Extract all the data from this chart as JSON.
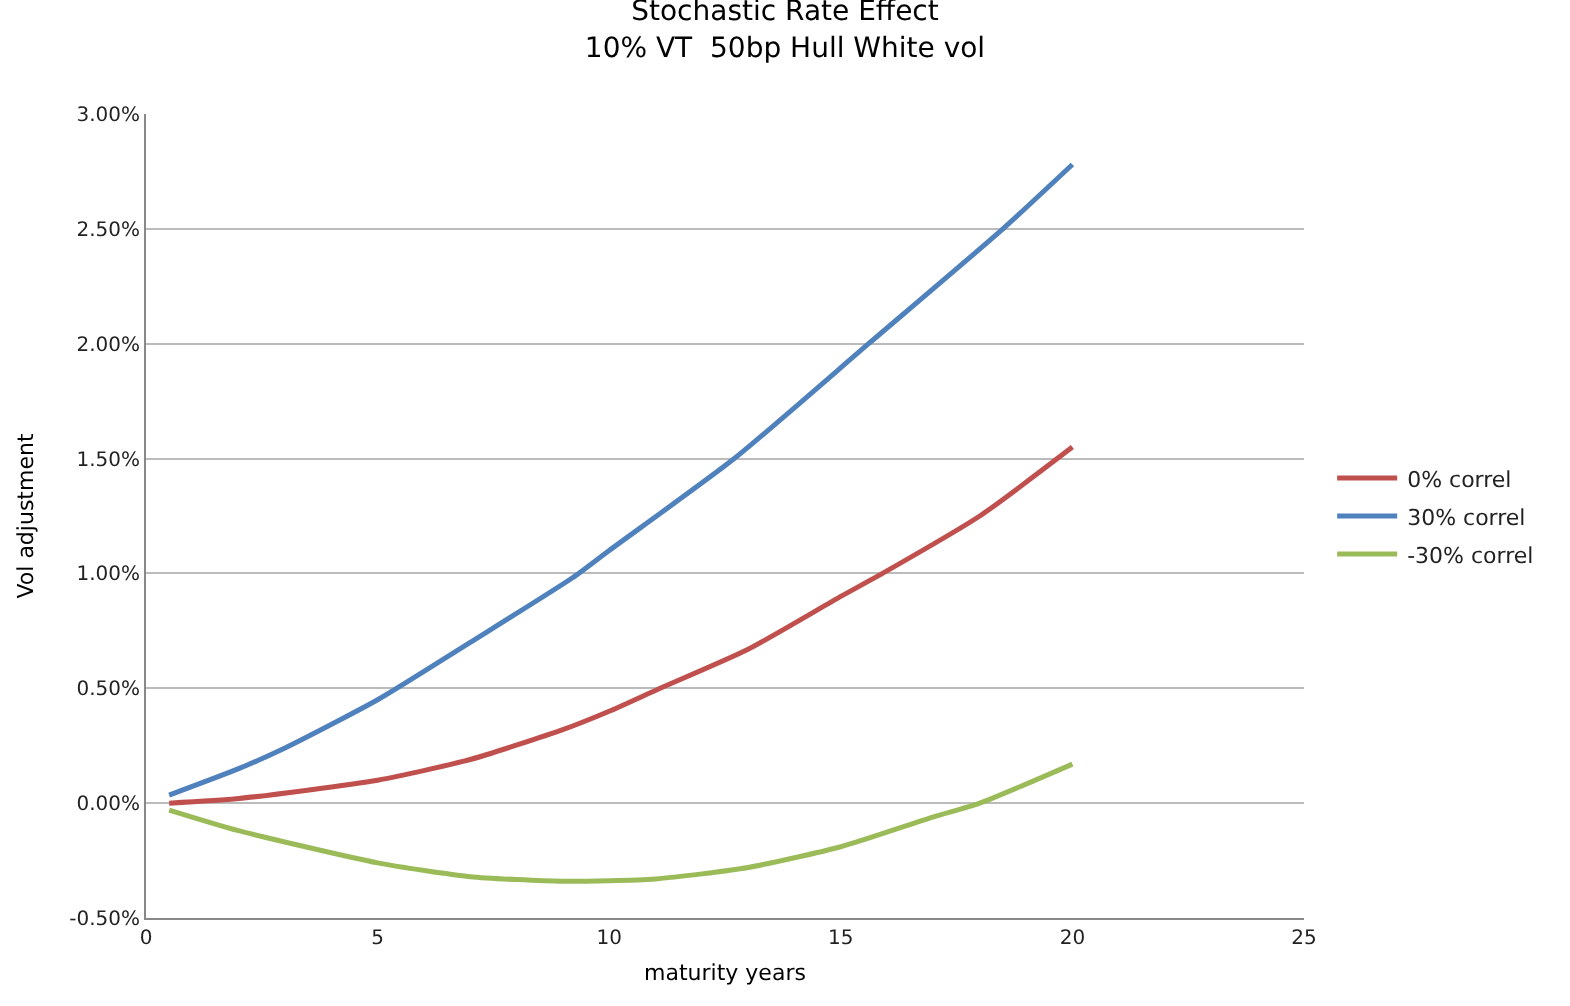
{
  "chart_data": {
    "type": "line",
    "title": "Stochastic Rate Effect\n10% VT  50bp Hull White vol",
    "xlabel": "maturity years",
    "ylabel": "Vol adjustment",
    "xlim": [
      0,
      25
    ],
    "xticks": [
      0,
      5,
      10,
      15,
      20,
      25
    ],
    "ylim": [
      -0.5,
      3
    ],
    "yticks": [
      {
        "value": -0.5,
        "label": "-0.50%"
      },
      {
        "value": 0,
        "label": "0.00%"
      },
      {
        "value": 0.5,
        "label": "0.50%"
      },
      {
        "value": 1,
        "label": "1.00%"
      },
      {
        "value": 1.5,
        "label": "1.50%"
      },
      {
        "value": 2,
        "label": "2.00%"
      },
      {
        "value": 2.5,
        "label": "2.50%"
      },
      {
        "value": 3,
        "label": "3.00%"
      }
    ],
    "grid": "y",
    "legend": "right",
    "marker": "none",
    "series": [
      {
        "name": "0% correl",
        "color": "#c0504d",
        "x": [
          0.5,
          2,
          5,
          7,
          9,
          10,
          11.1,
          13,
          15,
          15.9,
          18,
          20
        ],
        "values": [
          0,
          0.02,
          0.1,
          0.19,
          0.32,
          0.4,
          0.5,
          0.67,
          0.9,
          1.0,
          1.25,
          1.55
        ]
      },
      {
        "name": "30% correl",
        "color": "#4f81bd",
        "x": [
          0.5,
          2,
          3,
          5,
          7,
          9.2,
          10,
          12.7,
          15.6,
          18.5,
          20
        ],
        "values": [
          0.035,
          0.15,
          0.24,
          0.45,
          0.7,
          0.98,
          1.1,
          1.5,
          2.0,
          2.5,
          2.78
        ]
      },
      {
        "name": "-30% correl",
        "color": "#9bbb59",
        "x": [
          0.5,
          2,
          5,
          7,
          9,
          11,
          13,
          15,
          17,
          18,
          20
        ],
        "values": [
          -0.03,
          -0.12,
          -0.26,
          -0.32,
          -0.34,
          -0.33,
          -0.28,
          -0.19,
          -0.06,
          0.0,
          0.17
        ]
      }
    ]
  }
}
